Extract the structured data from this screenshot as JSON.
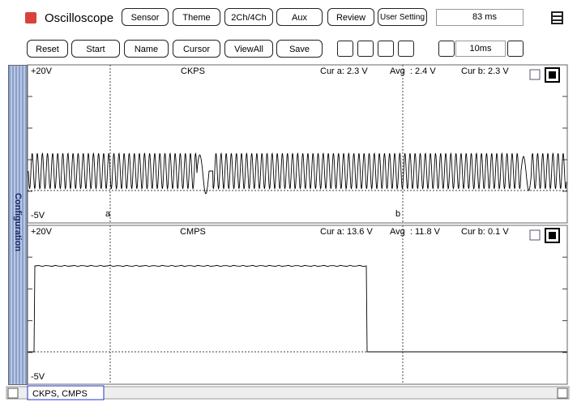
{
  "toolbar": {
    "app_title": "Oscilloscope",
    "buttons": [
      "Sensor",
      "Theme",
      "2Ch/4Ch",
      "Aux",
      "Review",
      "User Setting"
    ],
    "timer": "83 ms"
  },
  "controls": {
    "buttons": [
      "Reset",
      "Start",
      "Name",
      "Cursor",
      "ViewAll",
      "Save"
    ],
    "time_div": "10ms"
  },
  "side_tab": "Configuration",
  "channels": [
    {
      "name": "CKPS",
      "top": "+20V",
      "bottom": "-5V",
      "cur_a": "Cur a: 2.3 V",
      "avg": "Avg  : 2.4 V",
      "cur_b": "Cur b: 2.3 V"
    },
    {
      "name": "CMPS",
      "top": "+20V",
      "bottom": "-5V",
      "cur_a": "Cur a: 13.6 V",
      "avg": "Avg  : 11.8 V",
      "cur_b": "Cur b: 0.1 V"
    }
  ],
  "cursors": [
    "a",
    "b"
  ],
  "status": "CKPS, CMPS"
}
